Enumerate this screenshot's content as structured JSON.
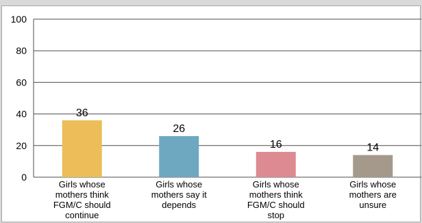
{
  "chart_data": {
    "type": "bar",
    "title": "",
    "xlabel": "",
    "ylabel": "",
    "ylim": [
      0,
      100
    ],
    "yticks": [
      0,
      20,
      40,
      60,
      80,
      100
    ],
    "grid": true,
    "legend": "none",
    "categories": [
      [
        "Girls whose",
        "mothers think",
        "FGM/C should",
        "continue"
      ],
      [
        "Girls whose",
        "mothers say it",
        "depends"
      ],
      [
        "Girls whose",
        "mothers think",
        "FGM/C should",
        "stop"
      ],
      [
        "Girls whose",
        "mothers are",
        "unsure"
      ]
    ],
    "values": [
      36,
      26,
      16,
      14
    ],
    "data_labels": [
      "36",
      "26",
      "16",
      "14"
    ],
    "colors": [
      "#ecbd58",
      "#6ea7c0",
      "#dd8a92",
      "#a5998c"
    ],
    "gridline_color": "#4d4d4d"
  }
}
